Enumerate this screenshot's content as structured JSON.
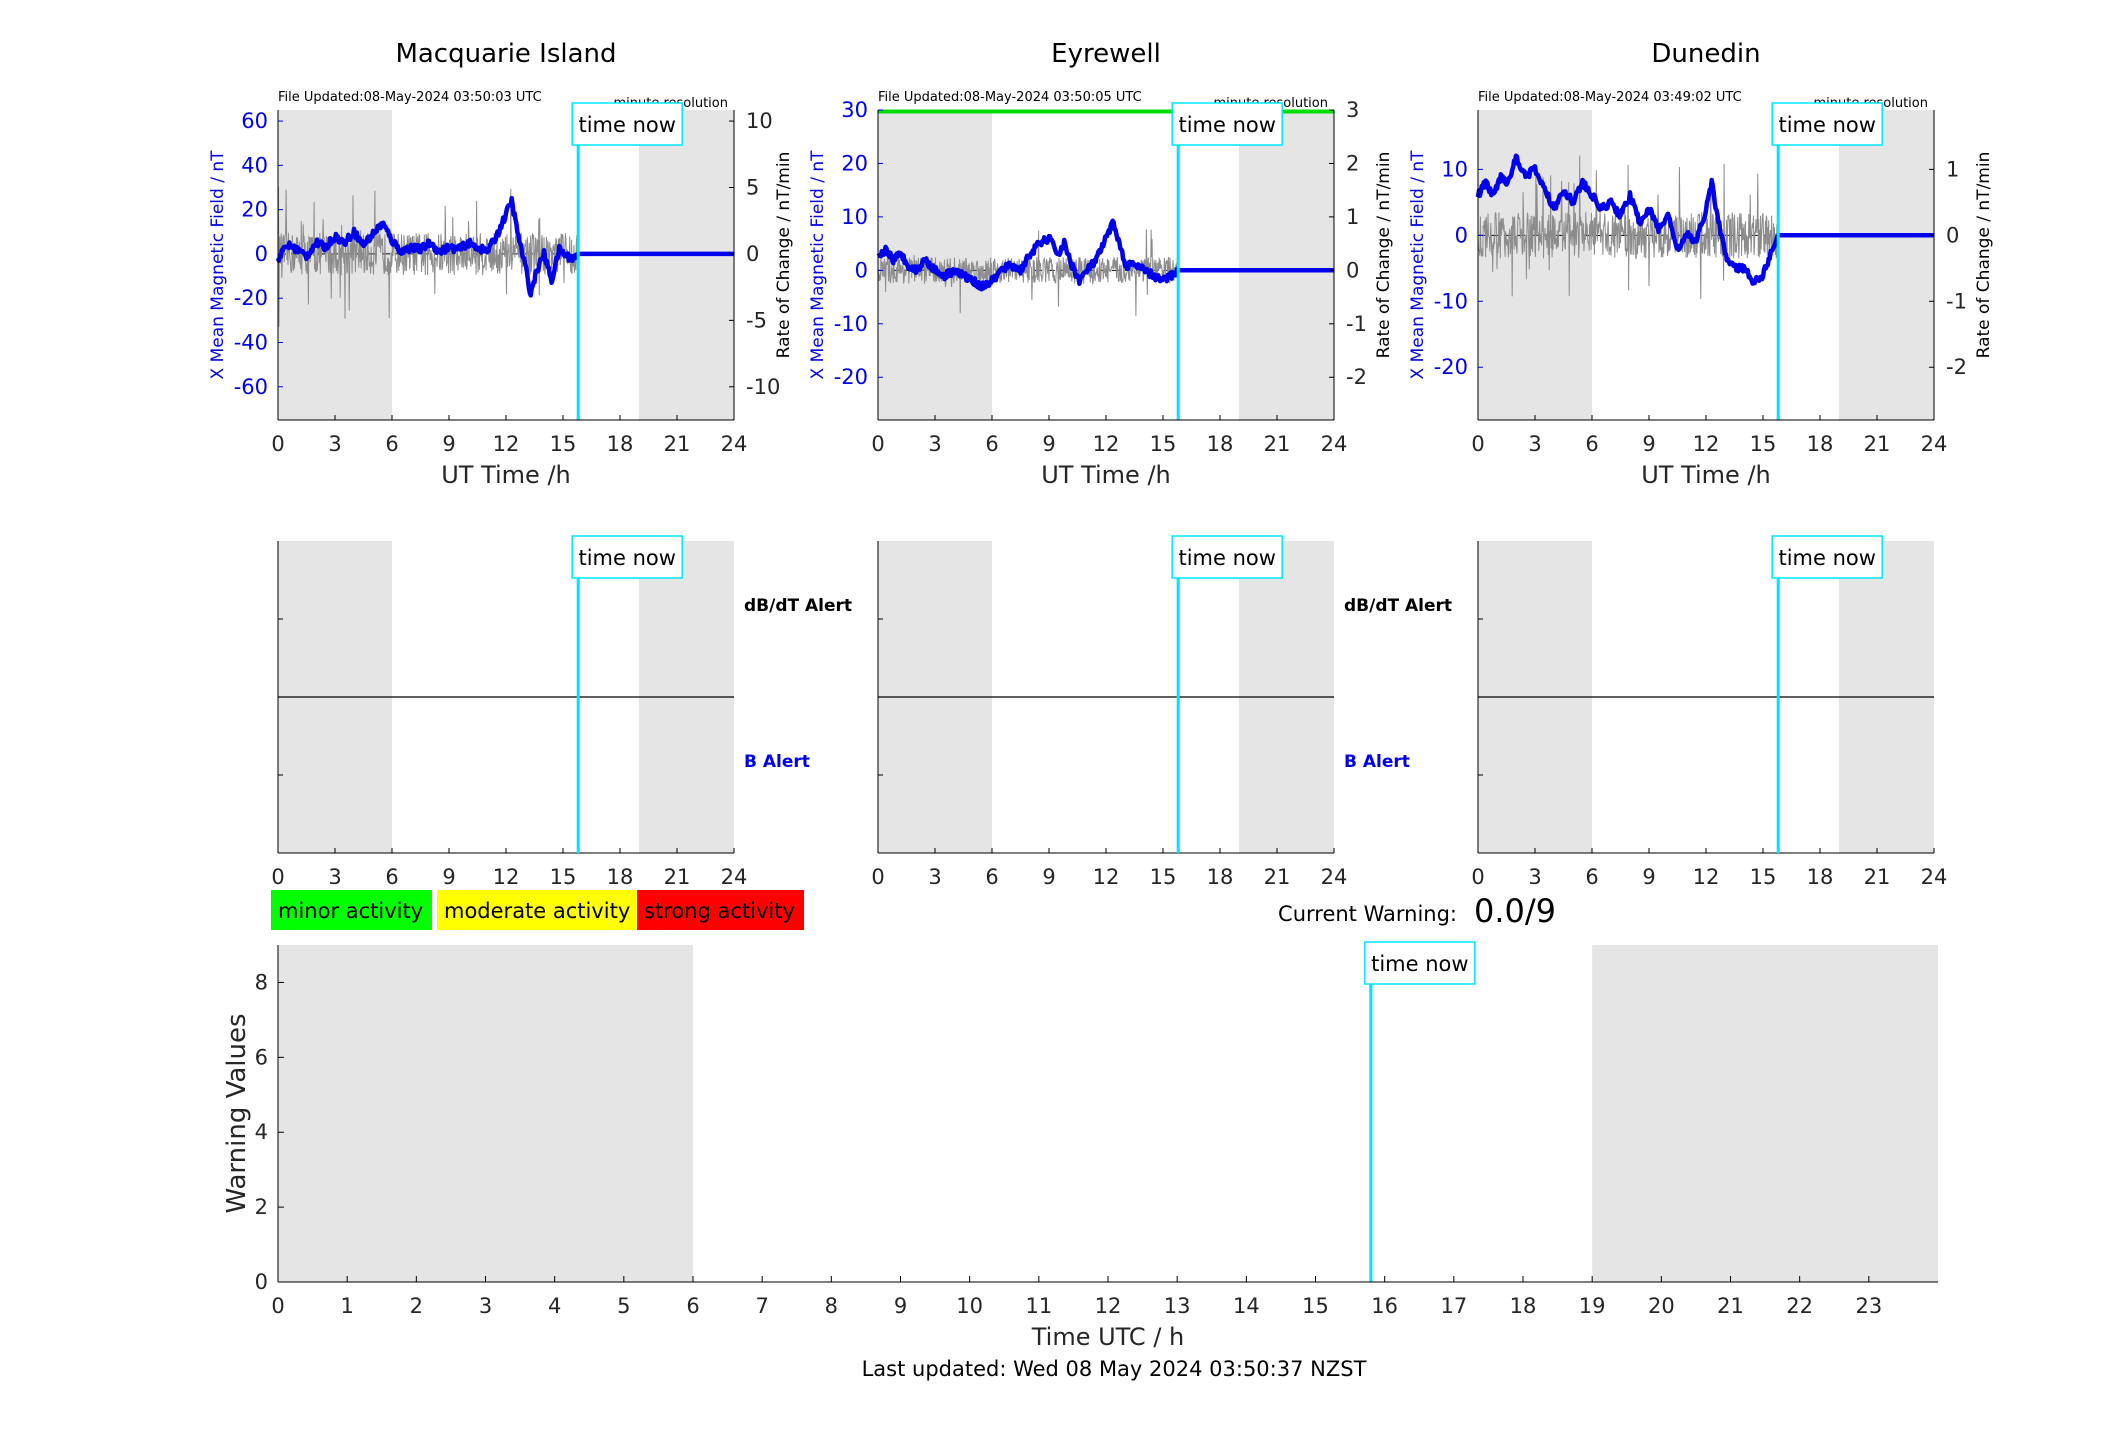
{
  "stations": [
    {
      "title": "Macquarie Island",
      "file_updated": "File Updated:08-May-2024 03:50:03 UTC",
      "resolution": "minute resolution",
      "left_ylabel": "X Mean Magnetic Field / nT",
      "right_ylabel": "Rate of Change / nT/min",
      "left_ylim": [
        -75,
        65
      ],
      "left_ticks": [
        -60,
        -40,
        -20,
        0,
        20,
        40,
        60
      ],
      "left_tick_labels": [
        "-60",
        "-40",
        "-20",
        "0",
        "20",
        "40",
        "60"
      ],
      "right_ylim": [
        -12.5,
        10.833
      ],
      "right_ticks": [
        -10,
        -5,
        0,
        5,
        10
      ],
      "right_tick_labels": [
        "-10",
        "-5",
        "0",
        "5",
        "10"
      ],
      "b_profile": [
        [
          0,
          -2
        ],
        [
          0.5,
          4
        ],
        [
          1,
          2
        ],
        [
          1.5,
          -1
        ],
        [
          2,
          5
        ],
        [
          2.5,
          3
        ],
        [
          3,
          8
        ],
        [
          3.5,
          5
        ],
        [
          4,
          10
        ],
        [
          4.5,
          4
        ],
        [
          5,
          9
        ],
        [
          5.5,
          14
        ],
        [
          6,
          6
        ],
        [
          6.5,
          1
        ],
        [
          7,
          3
        ],
        [
          7.5,
          2
        ],
        [
          8,
          5
        ],
        [
          8.5,
          1
        ],
        [
          9,
          3
        ],
        [
          9.5,
          2
        ],
        [
          10,
          5
        ],
        [
          10.5,
          3
        ],
        [
          11,
          1
        ],
        [
          11.5,
          8
        ],
        [
          12,
          18
        ],
        [
          12.3,
          24
        ],
        [
          12.6,
          10
        ],
        [
          13,
          -5
        ],
        [
          13.3,
          -18
        ],
        [
          13.6,
          -8
        ],
        [
          14,
          0
        ],
        [
          14.4,
          -12
        ],
        [
          14.8,
          2
        ],
        [
          15.2,
          -1
        ],
        [
          15.6,
          -2
        ],
        [
          15.8,
          0
        ]
      ],
      "noise_amp": 1.6,
      "alert_top_label": "dB/dT Alert",
      "alert_bottom_label": "B Alert",
      "green_line": false
    },
    {
      "title": "Eyrewell",
      "file_updated": "File Updated:08-May-2024 03:50:05 UTC",
      "resolution": "minute resolution",
      "left_ylabel": "X Mean Magnetic Field / nT",
      "right_ylabel": "Rate of Change / nT/min",
      "left_ylim": [
        -28,
        30
      ],
      "left_ticks": [
        -20,
        -10,
        0,
        10,
        20,
        30
      ],
      "left_tick_labels": [
        "-20",
        "-10",
        "0",
        "10",
        "20",
        "30"
      ],
      "right_ylim": [
        -2.8,
        3.0
      ],
      "right_ticks": [
        -2,
        -1,
        0,
        1,
        2,
        3
      ],
      "right_tick_labels": [
        "-2",
        "-1",
        "0",
        "1",
        "2",
        "3"
      ],
      "b_profile": [
        [
          0,
          2
        ],
        [
          0.4,
          4
        ],
        [
          0.8,
          2
        ],
        [
          1.2,
          3
        ],
        [
          1.6,
          1
        ],
        [
          2,
          0
        ],
        [
          2.5,
          2
        ],
        [
          3,
          0
        ],
        [
          3.5,
          -1
        ],
        [
          4,
          0
        ],
        [
          4.5,
          -1
        ],
        [
          5,
          -2
        ],
        [
          5.5,
          -3
        ],
        [
          6,
          -2
        ],
        [
          6.5,
          0
        ],
        [
          7,
          1
        ],
        [
          7.5,
          0
        ],
        [
          8,
          3
        ],
        [
          8.5,
          5
        ],
        [
          9,
          6
        ],
        [
          9.5,
          3
        ],
        [
          9.8,
          5
        ],
        [
          10.2,
          1
        ],
        [
          10.6,
          -2
        ],
        [
          11,
          0
        ],
        [
          11.5,
          2
        ],
        [
          12,
          6
        ],
        [
          12.4,
          9
        ],
        [
          12.7,
          5
        ],
        [
          13,
          1
        ],
        [
          13.5,
          1
        ],
        [
          14,
          0
        ],
        [
          14.5,
          -1
        ],
        [
          15,
          -2
        ],
        [
          15.4,
          -1
        ],
        [
          15.8,
          0
        ]
      ],
      "noise_amp": 0.25,
      "alert_top_label": "dB/dT Alert",
      "alert_bottom_label": "B Alert",
      "green_line": true
    },
    {
      "title": "Dunedin",
      "file_updated": "File Updated:08-May-2024 03:49:02 UTC",
      "resolution": "minute resolution",
      "left_ylabel": "X Mean Magnetic Field / nT",
      "right_ylabel": "Rate of Change / nT/min",
      "left_ylim": [
        -28,
        19
      ],
      "left_ticks": [
        -20,
        -10,
        0,
        10
      ],
      "left_tick_labels": [
        "-20",
        "-10",
        "0",
        "10"
      ],
      "right_ylim": [
        -2.8,
        1.9
      ],
      "right_ticks": [
        -2,
        -1,
        0,
        1
      ],
      "right_tick_labels": [
        "-2",
        "-1",
        "0",
        "1"
      ],
      "b_profile": [
        [
          0,
          6
        ],
        [
          0.4,
          8
        ],
        [
          0.8,
          6
        ],
        [
          1.2,
          9
        ],
        [
          1.6,
          8
        ],
        [
          2,
          12
        ],
        [
          2.5,
          9
        ],
        [
          3,
          10
        ],
        [
          3.5,
          7
        ],
        [
          4,
          4
        ],
        [
          4.5,
          7
        ],
        [
          5,
          5
        ],
        [
          5.5,
          8
        ],
        [
          6,
          6
        ],
        [
          6.5,
          4
        ],
        [
          7,
          5
        ],
        [
          7.5,
          3
        ],
        [
          8,
          6
        ],
        [
          8.5,
          2
        ],
        [
          9,
          4
        ],
        [
          9.5,
          1
        ],
        [
          10,
          3
        ],
        [
          10.5,
          -2
        ],
        [
          11,
          0
        ],
        [
          11.5,
          -1
        ],
        [
          12,
          4
        ],
        [
          12.3,
          8
        ],
        [
          12.6,
          3
        ],
        [
          13,
          -3
        ],
        [
          13.5,
          -5
        ],
        [
          14,
          -5
        ],
        [
          14.5,
          -7
        ],
        [
          15,
          -6
        ],
        [
          15.5,
          -2
        ],
        [
          15.8,
          0
        ]
      ],
      "noise_amp": 0.35,
      "alert_top_label": "dB/dT Alert",
      "alert_bottom_label": "B Alert",
      "green_line": false
    }
  ],
  "shared": {
    "xlabel": "UT Time /h",
    "x_ticks": [
      0,
      3,
      6,
      9,
      12,
      15,
      18,
      21,
      24
    ],
    "x_tick_labels": [
      "0",
      "3",
      "6",
      "9",
      "12",
      "15",
      "18",
      "21",
      "24"
    ],
    "time_now_label": "time now",
    "time_now_hour": 15.8,
    "night_shade": [
      [
        0,
        6
      ],
      [
        19,
        24
      ]
    ]
  },
  "legend": {
    "minor": "minor activity",
    "moderate": "moderate activity",
    "strong": "strong activity",
    "minor_color": "#00ff00",
    "moderate_color": "#ffff00",
    "strong_color": "#ff0000"
  },
  "current_warning": {
    "label": "Current Warning:",
    "value": "0.0/9"
  },
  "footer": {
    "last_updated": "Last updated: Wed 08 May 2024 03:50:37 NZST"
  },
  "chart_data": [
    {
      "type": "line",
      "title": "Macquarie Island",
      "xlabel": "UT Time /h",
      "ylabel": "X Mean Magnetic Field / nT",
      "y2label": "Rate of Change / nT/min",
      "xlim": [
        0,
        24
      ],
      "ylim": [
        -75,
        65
      ],
      "y2lim": [
        -12.5,
        10.833
      ],
      "series": []
    },
    {
      "type": "line",
      "title": "Eyrewell",
      "xlabel": "UT Time /h",
      "ylabel": "X Mean Magnetic Field / nT",
      "y2label": "Rate of Change / nT/min",
      "xlim": [
        0,
        24
      ],
      "ylim": [
        -28,
        30
      ],
      "y2lim": [
        -2.8,
        3.0
      ],
      "series": []
    },
    {
      "type": "line",
      "title": "Dunedin",
      "xlabel": "UT Time /h",
      "ylabel": "X Mean Magnetic Field / nT",
      "y2label": "Rate of Change / nT/min",
      "xlim": [
        0,
        24
      ],
      "ylim": [
        -28,
        19
      ],
      "y2lim": [
        -2.8,
        1.9
      ],
      "series": []
    },
    {
      "type": "bar",
      "title": "",
      "xlabel": "Time UTC / h",
      "ylabel": "Warning Values",
      "xlim": [
        0,
        24
      ],
      "ylim": [
        0,
        9
      ],
      "x_ticks": [
        0,
        1,
        2,
        3,
        4,
        5,
        6,
        7,
        8,
        9,
        10,
        11,
        12,
        13,
        14,
        15,
        16,
        17,
        18,
        19,
        20,
        21,
        22,
        23
      ],
      "x_tick_labels": [
        "0",
        "1",
        "2",
        "3",
        "4",
        "5",
        "6",
        "7",
        "8",
        "9",
        "10",
        "11",
        "12",
        "13",
        "14",
        "15",
        "16",
        "17",
        "18",
        "19",
        "20",
        "21",
        "22",
        "23"
      ],
      "y_ticks": [
        0,
        2,
        4,
        6,
        8
      ],
      "y_tick_labels": [
        "0",
        "2",
        "4",
        "6",
        "8"
      ],
      "values": [],
      "time_now_hour": 15.8,
      "night_shade": [
        [
          0,
          6
        ],
        [
          19,
          24
        ]
      ]
    }
  ]
}
